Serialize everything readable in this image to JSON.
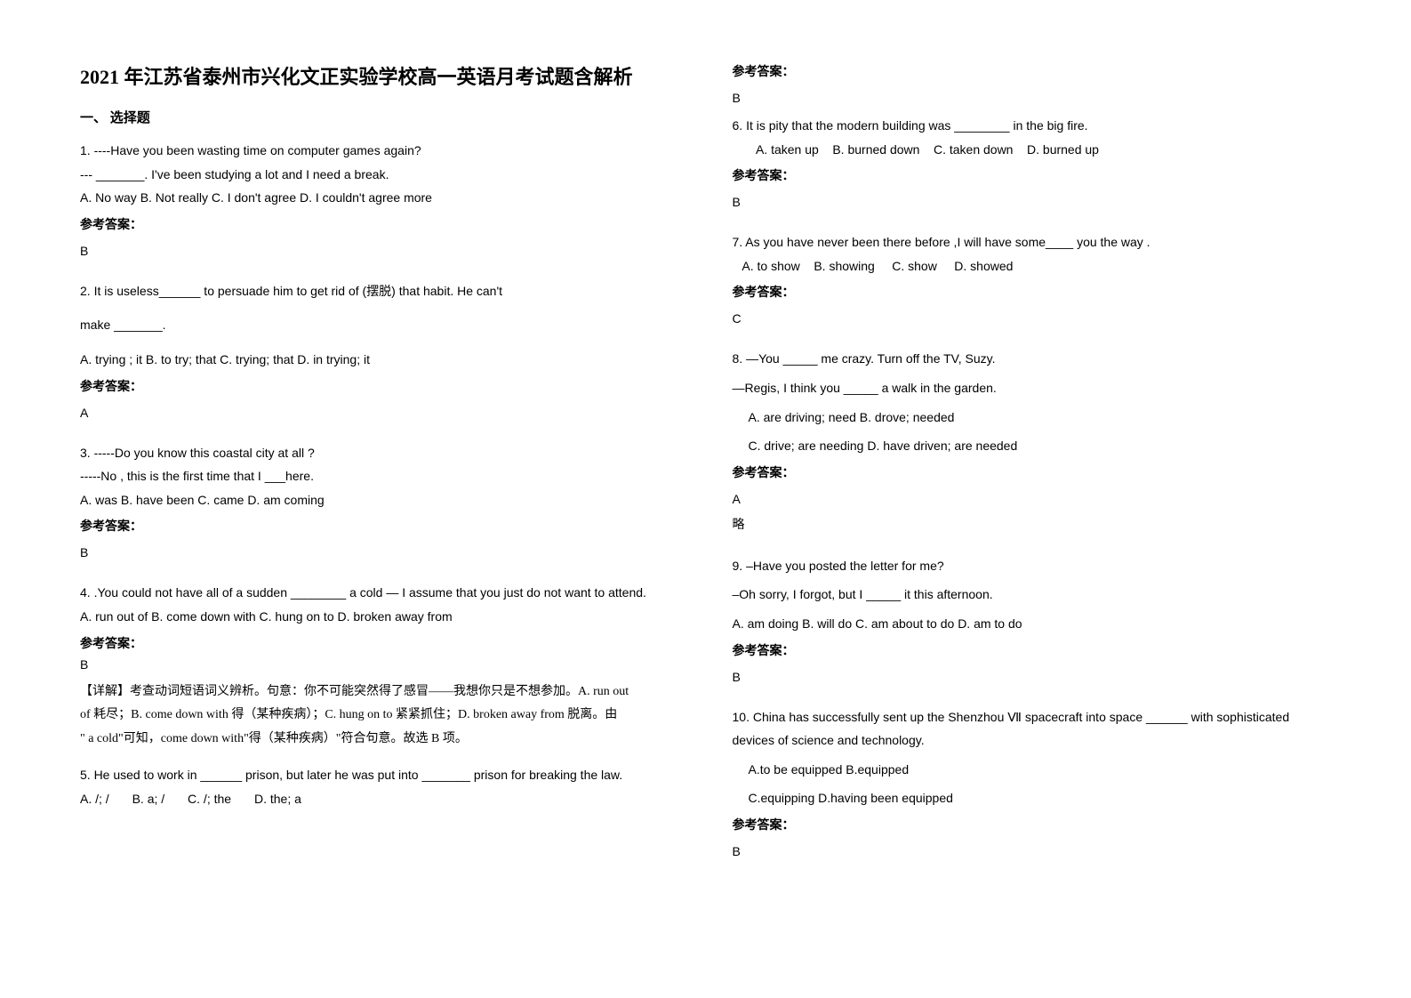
{
  "title": "2021 年江苏省泰州市兴化文正实验学校高一英语月考试题含解析",
  "section1": "一、 选择题",
  "answer_label": "参考答案：",
  "extra_label": "略",
  "q1": {
    "l1": "1. ----Have you been wasting time on computer games again?",
    "l2": "--- _______. I've been studying a lot and I need a break.",
    "opts": "A. No way   B. Not really   C. I don't agree   D. I couldn't agree more",
    "ans": "B"
  },
  "q2": {
    "l1": "2. It is useless______ to persuade him to get rid of (摆脱) that habit. He can't",
    "l2": "make _______.",
    "opts": "A. trying ; it      B. to try; that     C. trying; that     D. in trying; it",
    "ans": "A"
  },
  "q3": {
    "l1": "3. -----Do you know this coastal city at all ?",
    "l2": "-----No , this is the first time that I ___here.",
    "opts": "A. was   B. have been   C. came   D. am coming",
    "ans": "B"
  },
  "q4": {
    "l1": "4. .You could not have all of a sudden ________ a cold — I assume that you just do not want to attend.",
    "opts": "A. run out of     B. come down with     C. hung on to    D. broken away from",
    "ans": "B",
    "exp1": "【详解】考查动词短语词义辨析。句意：你不可能突然得了感冒——我想你只是不想参加。A. run out",
    "exp2": "of 耗尽；B. come down with 得（某种疾病）；C. hung on to 紧紧抓住；D. broken away from 脱离。由",
    "exp3": "\" a cold\"可知，come down with\"得（某种疾病）\"符合句意。故选 B 项。"
  },
  "q5": {
    "l1": "5. He used to work in ______ prison, but later he was put into _______ prison for breaking the law.",
    "a": "A. /; /",
    "b": "B. a; /",
    "c": "C. /; the",
    "d": "D. the; a",
    "ans": "B"
  },
  "q6": {
    "l1": "6. It is pity that the modern building was ________ in the big fire.",
    "opts": "       A. taken up    B. burned down    C. taken down    D. burned up",
    "ans": "B"
  },
  "q7": {
    "l1": "7. As you have never been there before ,I will have some____ you the way .",
    "opts": "   A. to show    B. showing     C. show     D. showed",
    "ans": "C"
  },
  "q8": {
    "l1": "8. —You _____ me crazy. Turn off the TV, Suzy.",
    "l2": "—Regis, I think you _____ a walk in the garden.",
    "o1": "A. are driving; need       B. drove; needed",
    "o2": "C. drive; are needing      D. have driven; are needed",
    "ans": "A"
  },
  "q9": {
    "l1": "9. –Have you posted the letter for me?",
    "l2": "–Oh sorry, I forgot, but I _____ it this afternoon.",
    "opts": "A. am doing    B. will do   C. am about to do   D. am to do",
    "ans": "B"
  },
  "q10": {
    "l1": "10. China has successfully sent up the Shenzhou Ⅶ spacecraft into space ______ with sophisticated devices of science and technology.",
    "o1": "A.to be equipped     B.equipped",
    "o2": "C.equipping       D.having been equipped",
    "ans": "B"
  }
}
